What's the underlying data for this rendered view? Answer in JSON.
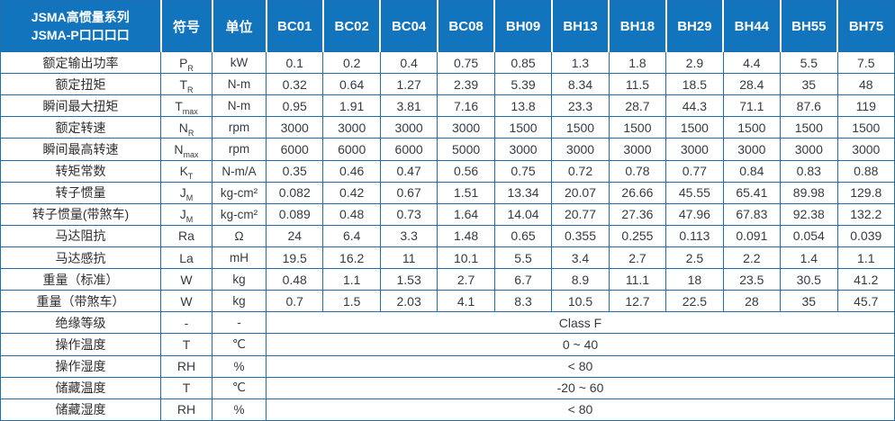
{
  "colors": {
    "header_bg": "#1274bd",
    "border": "#1e6fb2",
    "header_text": "#ffffff"
  },
  "header": {
    "title_line1": "JSMA高惯量系列",
    "title_line2": "JSMA-P口口口口",
    "symbol_col": "符号",
    "unit_col": "单位",
    "models": [
      "BC01",
      "BC02",
      "BC04",
      "BC08",
      "BH09",
      "BH13",
      "BH18",
      "BH29",
      "BH44",
      "BH55",
      "BH75"
    ]
  },
  "rows": [
    {
      "label": "额定输出功率",
      "symbol": "P",
      "symbol_sub": "R",
      "unit": "kW",
      "values": [
        "0.1",
        "0.2",
        "0.4",
        "0.75",
        "0.85",
        "1.3",
        "1.8",
        "2.9",
        "4.4",
        "5.5",
        "7.5"
      ]
    },
    {
      "label": "额定扭矩",
      "symbol": "T",
      "symbol_sub": "R",
      "unit": "N-m",
      "values": [
        "0.32",
        "0.64",
        "1.27",
        "2.39",
        "5.39",
        "8.34",
        "11.5",
        "18.5",
        "28.4",
        "35",
        "48"
      ]
    },
    {
      "label": "瞬间最大扭矩",
      "symbol": "T",
      "symbol_sub": "max",
      "unit": "N-m",
      "values": [
        "0.95",
        "1.91",
        "3.81",
        "7.16",
        "13.8",
        "23.3",
        "28.7",
        "44.3",
        "71.1",
        "87.6",
        "119"
      ]
    },
    {
      "label": "额定转速",
      "symbol": "N",
      "symbol_sub": "R",
      "unit": "rpm",
      "values": [
        "3000",
        "3000",
        "3000",
        "3000",
        "1500",
        "1500",
        "1500",
        "1500",
        "1500",
        "1500",
        "1500"
      ]
    },
    {
      "label": "瞬间最高转速",
      "symbol": "N",
      "symbol_sub": "max",
      "unit": "rpm",
      "values": [
        "6000",
        "6000",
        "6000",
        "5000",
        "3000",
        "3000",
        "3000",
        "3000",
        "3000",
        "3000",
        "3000"
      ]
    },
    {
      "label": "转矩常数",
      "symbol": "K",
      "symbol_sub": "T",
      "unit": "N-m/A",
      "values": [
        "0.35",
        "0.46",
        "0.47",
        "0.56",
        "0.75",
        "0.72",
        "0.78",
        "0.77",
        "0.84",
        "0.83",
        "0.88"
      ]
    },
    {
      "label": "转子惯量",
      "symbol": "J",
      "symbol_sub": "M",
      "unit": "kg-cm²",
      "values": [
        "0.082",
        "0.42",
        "0.67",
        "1.51",
        "13.34",
        "20.07",
        "26.66",
        "45.55",
        "65.41",
        "89.98",
        "129.8"
      ]
    },
    {
      "label": "转子惯量(带煞车)",
      "symbol": "J",
      "symbol_sub": "M",
      "unit": "kg-cm²",
      "values": [
        "0.089",
        "0.48",
        "0.73",
        "1.64",
        "14.04",
        "20.77",
        "27.36",
        "47.96",
        "67.83",
        "92.38",
        "132.2"
      ]
    },
    {
      "label": "马达阻抗",
      "symbol": "Ra",
      "symbol_sub": "",
      "unit": "Ω",
      "values": [
        "24",
        "6.4",
        "3.3",
        "1.48",
        "0.65",
        "0.355",
        "0.255",
        "0.113",
        "0.091",
        "0.054",
        "0.039"
      ]
    },
    {
      "label": "马达感抗",
      "symbol": "La",
      "symbol_sub": "",
      "unit": "mH",
      "values": [
        "19.5",
        "16.2",
        "11",
        "10.1",
        "5.5",
        "3.4",
        "2.7",
        "2.5",
        "2.2",
        "1.4",
        "1.1"
      ]
    },
    {
      "label": "重量（标准）",
      "symbol": "W",
      "symbol_sub": "",
      "unit": "kg",
      "values": [
        "0.48",
        "1.1",
        "1.53",
        "2.7",
        "6.7",
        "8.9",
        "11.1",
        "18",
        "23.5",
        "30.5",
        "41.2"
      ]
    },
    {
      "label": "重量（带煞车）",
      "symbol": "W",
      "symbol_sub": "",
      "unit": "kg",
      "values": [
        "0.7",
        "1.5",
        "2.03",
        "4.1",
        "8.3",
        "10.5",
        "12.7",
        "22.5",
        "28",
        "35",
        "45.7"
      ]
    },
    {
      "label": "绝缘等级",
      "symbol": "-",
      "symbol_sub": "",
      "unit": "-",
      "merged": "Class F"
    },
    {
      "label": "操作温度",
      "symbol": "T",
      "symbol_sub": "",
      "unit": "℃",
      "merged": "0 ~ 40"
    },
    {
      "label": "操作湿度",
      "symbol": "RH",
      "symbol_sub": "",
      "unit": "%",
      "merged": "< 80"
    },
    {
      "label": "储藏温度",
      "symbol": "T",
      "symbol_sub": "",
      "unit": "℃",
      "merged": "-20 ~ 60"
    },
    {
      "label": "储藏湿度",
      "symbol": "RH",
      "symbol_sub": "",
      "unit": "%",
      "merged": "< 80"
    }
  ]
}
